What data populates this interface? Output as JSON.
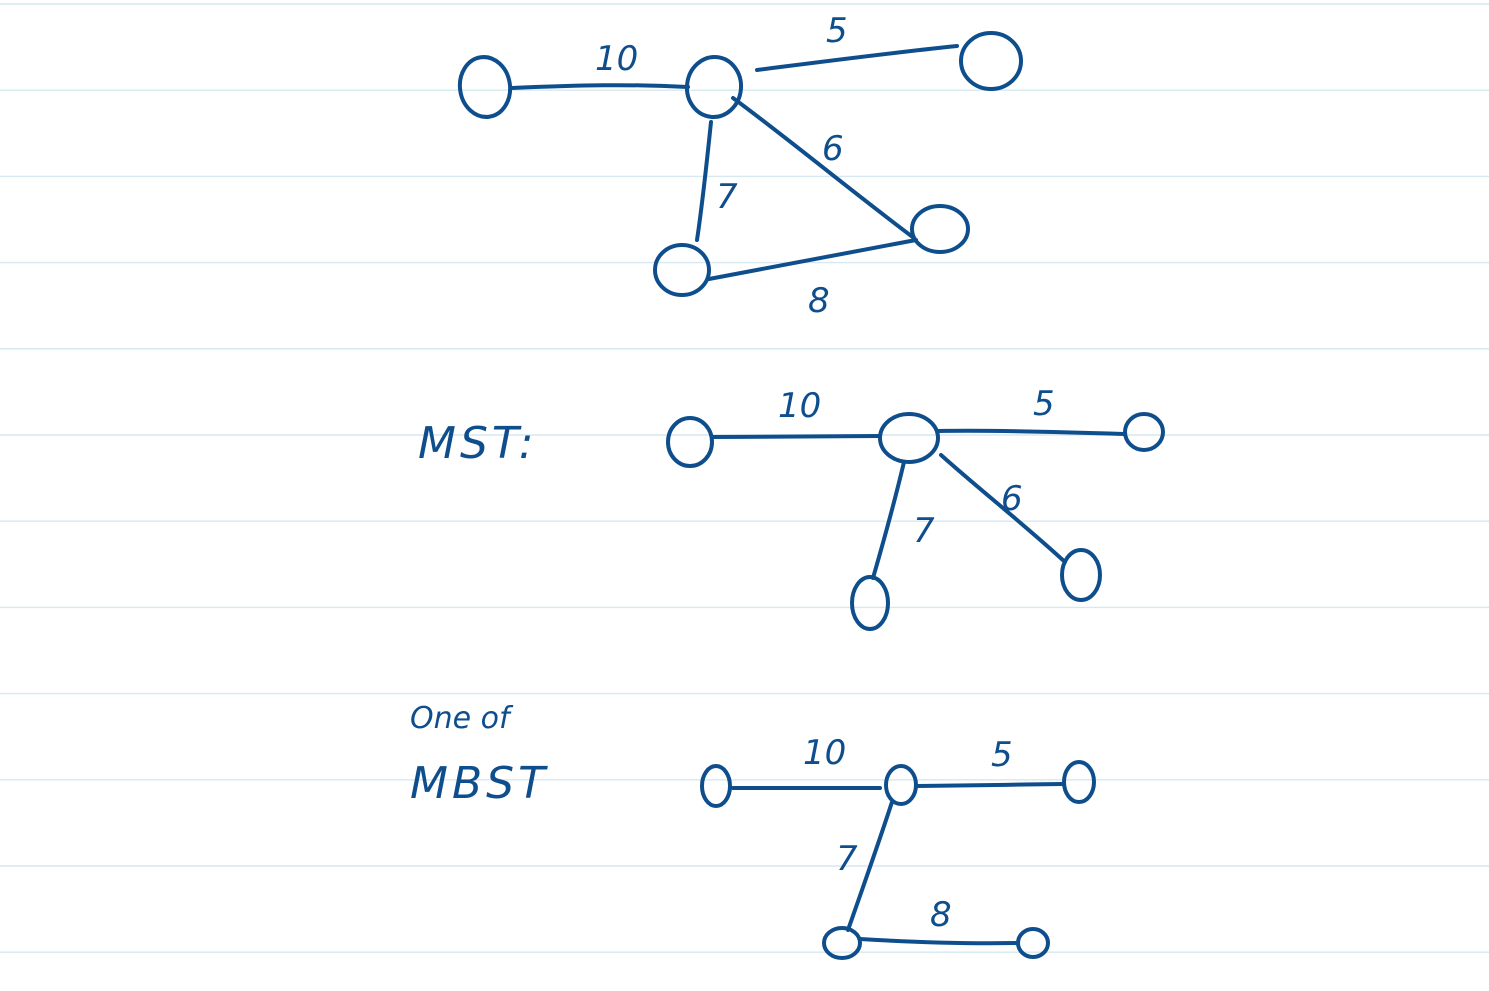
{
  "ink_color": "#0f4e8c",
  "rule_color": "#d6e8f1",
  "graphs": [
    {
      "id": "original",
      "label_lines": [],
      "edges": [
        {
          "weight": "10"
        },
        {
          "weight": "5"
        },
        {
          "weight": "6"
        },
        {
          "weight": "7"
        },
        {
          "weight": "8"
        }
      ]
    },
    {
      "id": "mst",
      "label_lines": [
        "MST:"
      ],
      "edges": [
        {
          "weight": "10"
        },
        {
          "weight": "5"
        },
        {
          "weight": "6"
        },
        {
          "weight": "7"
        }
      ]
    },
    {
      "id": "mbst",
      "label_lines": [
        "One of",
        "MBST"
      ],
      "edges": [
        {
          "weight": "10"
        },
        {
          "weight": "5"
        },
        {
          "weight": "7"
        },
        {
          "weight": "8"
        }
      ]
    }
  ]
}
